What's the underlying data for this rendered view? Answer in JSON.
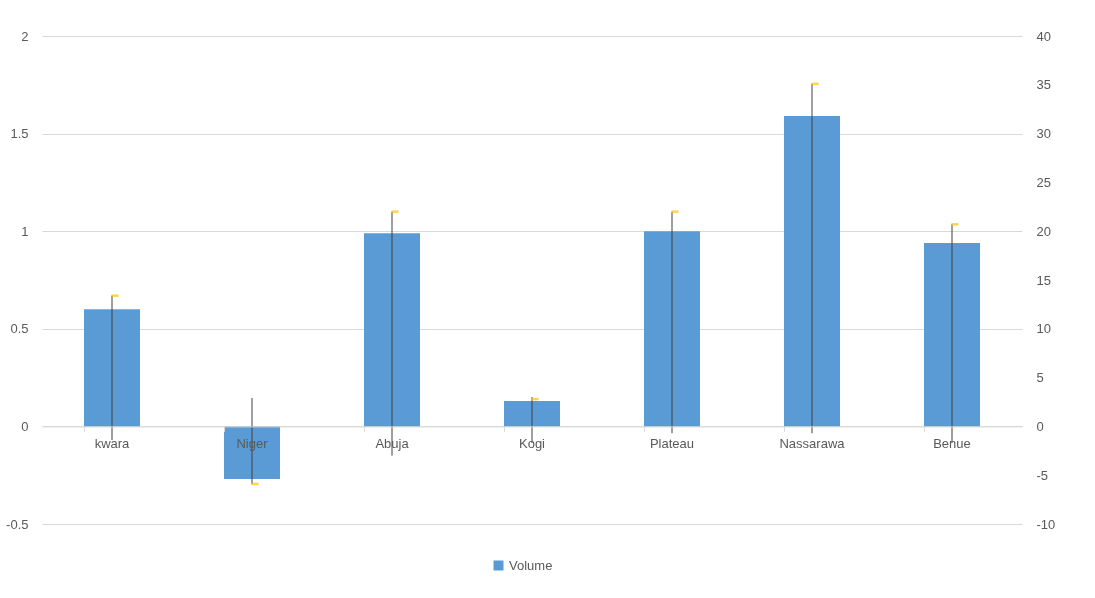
{
  "chart_data": {
    "type": "bar",
    "categories": [
      "kwara",
      "Niger",
      "Abuja",
      "Kogi",
      "Plateau",
      "Nassarawa",
      "Benue"
    ],
    "series": [
      {
        "name": "Volume",
        "color": "#5b9bd5",
        "values": [
          0.6,
          -0.27,
          0.99,
          0.13,
          1.0,
          1.59,
          0.94
        ]
      },
      {
        "type": "scatter",
        "axis": "y2",
        "color": "#ffc000",
        "values": [
          13.4,
          -5.9,
          22.0,
          2.8,
          22.0,
          35.1,
          20.7
        ],
        "errors": [
          [
            -1.4,
            13.4
          ],
          [
            -5.9,
            2.9
          ],
          [
            -3.0,
            22.0
          ],
          [
            -1.7,
            3.0
          ],
          [
            -0.7,
            22.0
          ],
          [
            -0.7,
            35.1
          ],
          [
            -1.7,
            20.7
          ]
        ]
      }
    ],
    "ylim": [
      -0.5,
      2
    ],
    "yticks": [
      -0.5,
      0,
      0.5,
      1,
      1.5,
      2
    ],
    "y2lim": [
      -10,
      40
    ],
    "y2ticks": [
      -10,
      -5,
      0,
      5,
      10,
      15,
      20,
      25,
      30,
      35,
      40
    ],
    "grid": "y",
    "legend": "bottom"
  }
}
